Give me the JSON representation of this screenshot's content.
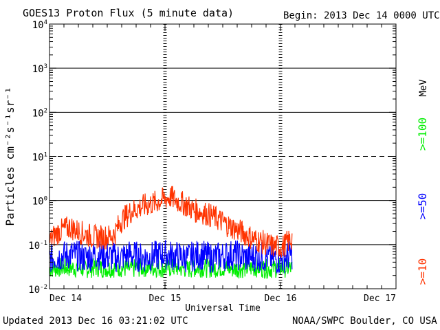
{
  "chart_data": {
    "type": "line",
    "title": "GOES13 Proton Flux (5 minute data)",
    "begin_label": "Begin: 2013 Dec 14 0000 UTC",
    "xlabel": "Universal Time",
    "ylabel": "Particles cm⁻²s⁻¹sr⁻¹",
    "yscale": "log",
    "ylim": [
      0.01,
      10000
    ],
    "y_ticks": [
      {
        "value": 0.01,
        "base": "10",
        "exp": "-2"
      },
      {
        "value": 0.1,
        "base": "10",
        "exp": "-1"
      },
      {
        "value": 1,
        "base": "10",
        "exp": "0"
      },
      {
        "value": 10,
        "base": "10",
        "exp": "1"
      },
      {
        "value": 100,
        "base": "10",
        "exp": "2"
      },
      {
        "value": 1000,
        "base": "10",
        "exp": "3"
      },
      {
        "value": 10000,
        "base": "10",
        "exp": "4"
      }
    ],
    "xlim_days": [
      0,
      3
    ],
    "x_ticks": [
      {
        "day": 0,
        "label": "Dec 14"
      },
      {
        "day": 1,
        "label": "Dec 15"
      },
      {
        "day": 2,
        "label": "Dec 16"
      },
      {
        "day": 3,
        "label": "Dec 17"
      }
    ],
    "threshold_lines": [
      {
        "value": 10,
        "style": "dashed"
      },
      {
        "value": 100,
        "style": "solid"
      },
      {
        "value": 1000,
        "style": "solid"
      },
      {
        "value": 1,
        "style": "solid"
      },
      {
        "value": 0.1,
        "style": "solid"
      }
    ],
    "day_markers": [
      1,
      2
    ],
    "legend_unit": "MeV",
    "series": [
      {
        "name": ">=10",
        "color": "#ff3300",
        "x_days": [
          0,
          0.06,
          0.12,
          0.18,
          0.25,
          0.32,
          0.38,
          0.44,
          0.5,
          0.56,
          0.62,
          0.7,
          0.78,
          0.85,
          0.92,
          1.0,
          1.05,
          1.1,
          1.18,
          1.25,
          1.32,
          1.4,
          1.48,
          1.55,
          1.62,
          1.7,
          1.78,
          1.86,
          1.94,
          2.02,
          2.1
        ],
        "values": [
          0.12,
          0.18,
          0.22,
          0.25,
          0.2,
          0.17,
          0.15,
          0.15,
          0.15,
          0.17,
          0.35,
          0.55,
          0.7,
          0.8,
          0.9,
          1.1,
          1.2,
          1.0,
          0.8,
          0.6,
          0.55,
          0.45,
          0.35,
          0.27,
          0.22,
          0.17,
          0.13,
          0.11,
          0.09,
          0.09,
          0.14
        ]
      },
      {
        "name": ">=50",
        "color": "#0000ff",
        "x_days": [
          0,
          0.1,
          0.2,
          0.3,
          0.4,
          0.5,
          0.6,
          0.7,
          0.8,
          0.9,
          1.0,
          1.1,
          1.2,
          1.3,
          1.4,
          1.5,
          1.6,
          1.7,
          1.8,
          1.9,
          2.0,
          2.1
        ],
        "values": [
          0.05,
          0.055,
          0.06,
          0.05,
          0.06,
          0.055,
          0.05,
          0.06,
          0.05,
          0.055,
          0.06,
          0.055,
          0.05,
          0.06,
          0.05,
          0.055,
          0.06,
          0.05,
          0.055,
          0.05,
          0.045,
          0.06
        ]
      },
      {
        "name": ">=100",
        "color": "#00ee00",
        "x_days": [
          0,
          0.1,
          0.2,
          0.3,
          0.4,
          0.5,
          0.6,
          0.7,
          0.8,
          0.9,
          1.0,
          1.1,
          1.2,
          1.3,
          1.4,
          1.5,
          1.6,
          1.7,
          1.8,
          1.9,
          2.0,
          2.1
        ],
        "values": [
          0.028,
          0.03,
          0.03,
          0.028,
          0.03,
          0.029,
          0.03,
          0.028,
          0.03,
          0.03,
          0.029,
          0.03,
          0.028,
          0.03,
          0.029,
          0.03,
          0.028,
          0.029,
          0.03,
          0.028,
          0.03,
          0.029
        ]
      }
    ]
  },
  "footer": {
    "updated": "Updated 2013 Dec 16 03:21:02 UTC",
    "source": "NOAA/SWPC Boulder, CO USA"
  }
}
